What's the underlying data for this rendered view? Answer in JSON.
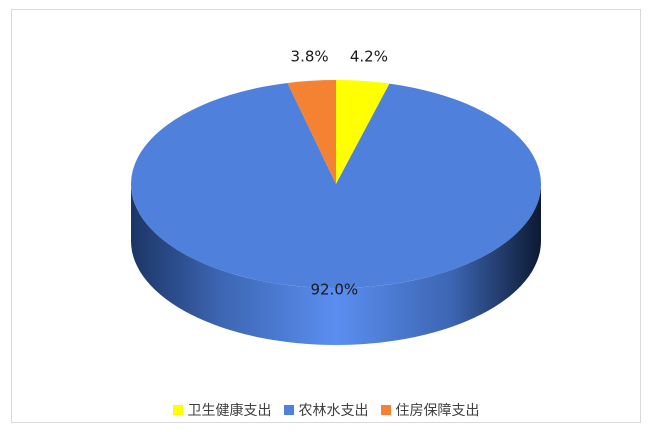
{
  "chart_data": {
    "type": "pie",
    "style": "3d",
    "categories": [
      "卫生健康支出",
      "农林水支出",
      "住房保障支出"
    ],
    "values": [
      4.2,
      92.0,
      3.8
    ],
    "data_labels": [
      "4.2%",
      "92.0%",
      "3.8%"
    ],
    "colors": [
      "#ffff00",
      "#4f81dc",
      "#f58233"
    ],
    "legend": "bottom"
  }
}
